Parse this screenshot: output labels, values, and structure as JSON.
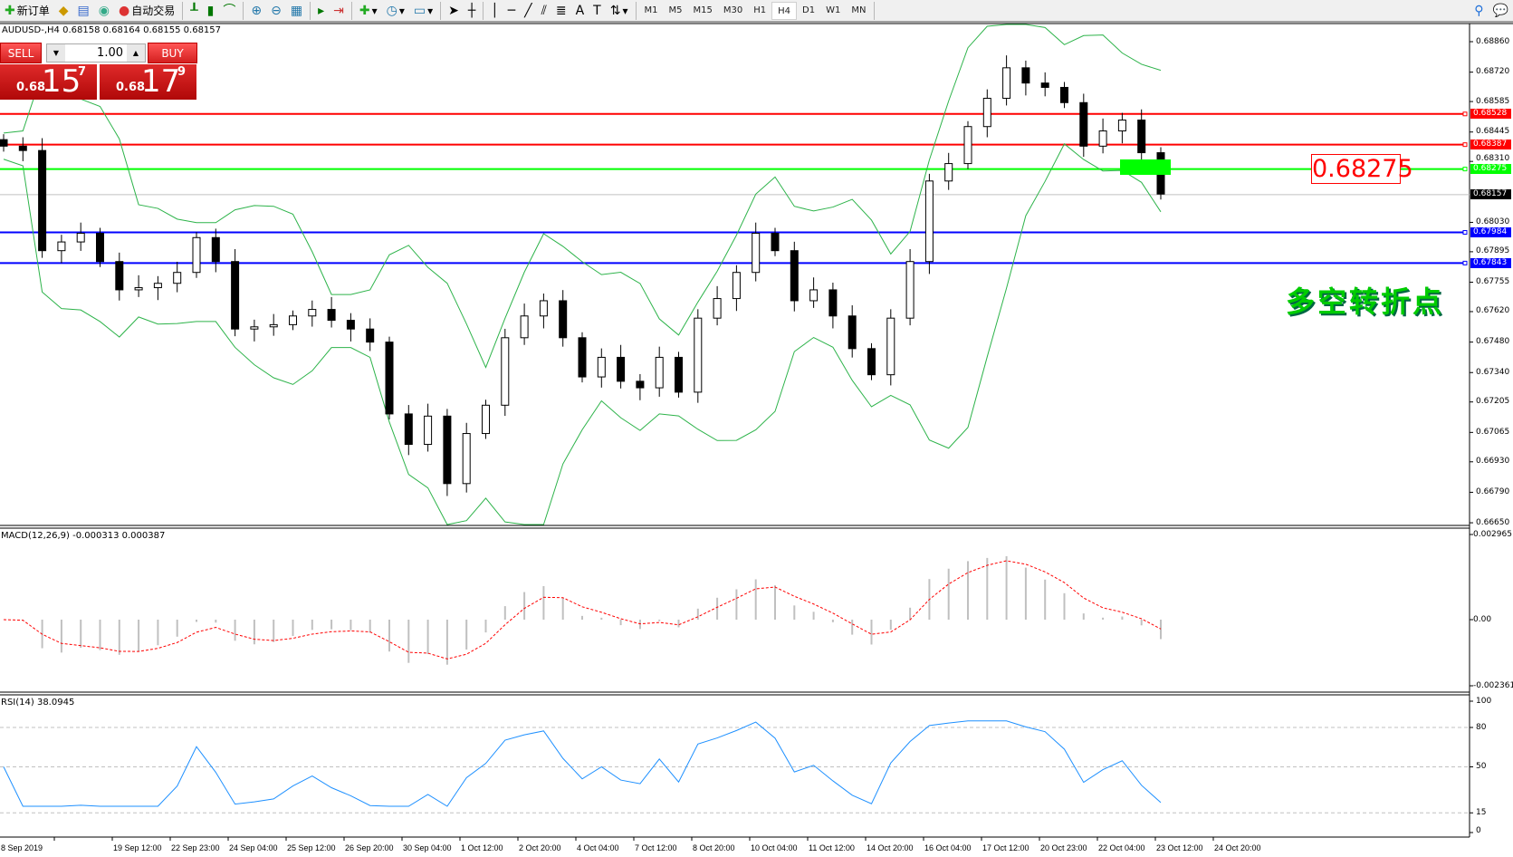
{
  "toolbar": {
    "new_order": "新订单",
    "auto_trading": "自动交易",
    "timeframes": [
      "M1",
      "M5",
      "M15",
      "M30",
      "H1",
      "H4",
      "D1",
      "W1",
      "MN"
    ],
    "selected_timeframe": "H4"
  },
  "symbol_line": "AUDUSD-,H4  0.68158 0.68164 0.68155 0.68157",
  "trade_panel": {
    "sell_label": "SELL",
    "buy_label": "BUY",
    "lot": "1.00",
    "sell_prefix": "0.68",
    "sell_big": "15",
    "sell_sup": "7",
    "buy_prefix": "0.68",
    "buy_big": "17",
    "buy_sup": "9"
  },
  "price_axis": {
    "ticks": [
      "0.68860",
      "0.68720",
      "0.68585",
      "0.68445",
      "0.68310",
      "0.68030",
      "0.67895",
      "0.67755",
      "0.67620",
      "0.67480",
      "0.67340",
      "0.67205",
      "0.67065",
      "0.66930",
      "0.66790",
      "0.66650"
    ],
    "range": [
      0.6665,
      0.6886
    ]
  },
  "horizontal_lines": [
    {
      "price": "0.68528",
      "color": "#ff0000"
    },
    {
      "price": "0.68387",
      "color": "#ff0000"
    },
    {
      "price": "0.68275",
      "color": "#00ff00"
    },
    {
      "price": "0.67984",
      "color": "#0000ff"
    },
    {
      "price": "0.67843",
      "color": "#0000ff"
    }
  ],
  "bid_line": {
    "price": "0.68157",
    "color": "#000000"
  },
  "price_annotation": "0.68275",
  "annotation_text": "多空转折点",
  "closes": [
    0.6838,
    0.6836,
    0.679,
    0.6794,
    0.6798,
    0.6785,
    0.6772,
    0.6773,
    0.6775,
    0.678,
    0.6796,
    0.6785,
    0.6754,
    0.6755,
    0.6756,
    0.676,
    0.6763,
    0.6758,
    0.6754,
    0.6748,
    0.6715,
    0.6701,
    0.6714,
    0.6683,
    0.6706,
    0.6719,
    0.675,
    0.676,
    0.6767,
    0.675,
    0.6732,
    0.6741,
    0.673,
    0.6727,
    0.6741,
    0.6725,
    0.6759,
    0.6768,
    0.678,
    0.6798,
    0.679,
    0.6767,
    0.6772,
    0.676,
    0.6745,
    0.6733,
    0.6759,
    0.6785,
    0.6822,
    0.683,
    0.6847,
    0.686,
    0.6874,
    0.6867,
    0.6865,
    0.6858,
    0.6838,
    0.6845,
    0.685,
    0.6835,
    0.6816
  ],
  "macd": {
    "label": "MACD(12,26,9) -0.000313 0.000387",
    "ticks": [
      "0.002965",
      "0.00",
      "-0.002361"
    ]
  },
  "rsi": {
    "label": "RSI(14) 38.0945",
    "ticks": [
      "100",
      "80",
      "50",
      "15",
      "0"
    ]
  },
  "dates": [
    "8 Sep 2019",
    "19 Sep 12:00",
    "22 Sep 23:00",
    "24 Sep 04:00",
    "25 Sep 12:00",
    "26 Sep 20:00",
    "30 Sep 04:00",
    "1 Oct 12:00",
    "2 Oct 20:00",
    "4 Oct 04:00",
    "7 Oct 12:00",
    "8 Oct 20:00",
    "10 Oct 04:00",
    "11 Oct 12:00",
    "14 Oct 20:00",
    "16 Oct 04:00",
    "17 Oct 12:00",
    "20 Oct 23:00",
    "22 Oct 04:00",
    "23 Oct 12:00",
    "24 Oct 20:00"
  ],
  "colors": {
    "bands": "#2db34a",
    "macd_signal": "#ff0000",
    "macd_hist": "#c0c0c0",
    "rsi": "#1e90ff"
  }
}
